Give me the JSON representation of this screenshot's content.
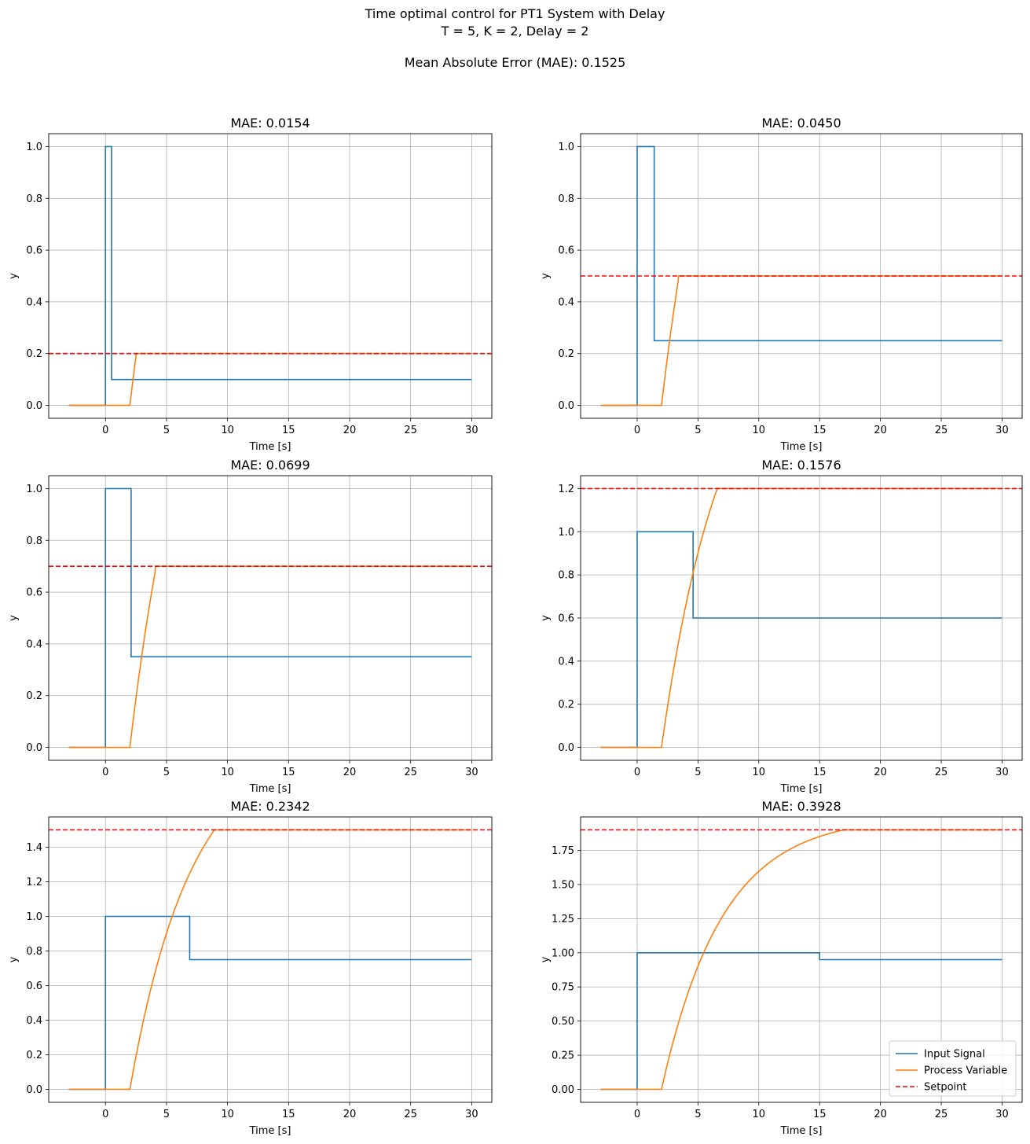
{
  "figure": {
    "title_line1": "Time optimal control for PT1 System with Delay",
    "title_line2": "T = 5, K = 2, Delay = 2",
    "title_line3": "Mean Absolute Error (MAE): 0.1525"
  },
  "legend": {
    "entries": [
      {
        "label": "Input Signal",
        "color": "#1f77b4",
        "style": "solid"
      },
      {
        "label": "Process Variable",
        "color": "#ff7f0e",
        "style": "solid"
      },
      {
        "label": "Setpoint",
        "color": "#ff0000",
        "style": "dashed"
      }
    ],
    "placement": "lower-right of last subplot"
  },
  "chart_data": [
    {
      "type": "line",
      "title": "MAE: 0.0154",
      "xlabel": "Time [s]",
      "ylabel": "y",
      "xlim": [
        -4.65,
        31.65
      ],
      "ylim": [
        -0.05,
        1.05
      ],
      "xticks": [
        "0",
        "5",
        "10",
        "15",
        "20",
        "25",
        "30"
      ],
      "yticks": [
        "0.0",
        "0.2",
        "0.4",
        "0.6",
        "0.8",
        "1.0"
      ],
      "grid": true,
      "setpoint": 0.2,
      "input_switch_time": 0.5,
      "input_final": 0.1,
      "pv_final": 0.2
    },
    {
      "type": "line",
      "title": "MAE: 0.0450",
      "xlabel": "Time [s]",
      "ylabel": "y",
      "xlim": [
        -4.65,
        31.65
      ],
      "ylim": [
        -0.05,
        1.05
      ],
      "xticks": [
        "0",
        "5",
        "10",
        "15",
        "20",
        "25",
        "30"
      ],
      "yticks": [
        "0.0",
        "0.2",
        "0.4",
        "0.6",
        "0.8",
        "1.0"
      ],
      "grid": true,
      "setpoint": 0.5,
      "input_switch_time": 1.4,
      "input_final": 0.25,
      "pv_final": 0.5
    },
    {
      "type": "line",
      "title": "MAE: 0.0699",
      "xlabel": "Time [s]",
      "ylabel": "y",
      "xlim": [
        -4.65,
        31.65
      ],
      "ylim": [
        -0.05,
        1.05
      ],
      "xticks": [
        "0",
        "5",
        "10",
        "15",
        "20",
        "25",
        "30"
      ],
      "yticks": [
        "0.0",
        "0.2",
        "0.4",
        "0.6",
        "0.8",
        "1.0"
      ],
      "grid": true,
      "setpoint": 0.7,
      "input_switch_time": 2.1,
      "input_final": 0.35,
      "pv_final": 0.7
    },
    {
      "type": "line",
      "title": "MAE: 0.1576",
      "xlabel": "Time [s]",
      "ylabel": "y",
      "xlim": [
        -4.65,
        31.65
      ],
      "ylim": [
        -0.06,
        1.26
      ],
      "xticks": [
        "0",
        "5",
        "10",
        "15",
        "20",
        "25",
        "30"
      ],
      "yticks": [
        "0.0",
        "0.2",
        "0.4",
        "0.6",
        "0.8",
        "1.0",
        "1.2"
      ],
      "grid": true,
      "setpoint": 1.2,
      "input_switch_time": 4.6,
      "input_final": 0.6,
      "pv_final": 1.2
    },
    {
      "type": "line",
      "title": "MAE: 0.2342",
      "xlabel": "Time [s]",
      "ylabel": "y",
      "xlim": [
        -4.65,
        31.65
      ],
      "ylim": [
        -0.075,
        1.575
      ],
      "xticks": [
        "0",
        "5",
        "10",
        "15",
        "20",
        "25",
        "30"
      ],
      "yticks": [
        "0.0",
        "0.2",
        "0.4",
        "0.6",
        "0.8",
        "1.0",
        "1.2",
        "1.4"
      ],
      "grid": true,
      "setpoint": 1.5,
      "input_switch_time": 6.9,
      "input_final": 0.75,
      "pv_final": 1.5
    },
    {
      "type": "line",
      "title": "MAE: 0.3928",
      "xlabel": "Time [s]",
      "ylabel": "y",
      "xlim": [
        -4.65,
        31.65
      ],
      "ylim": [
        -0.095,
        1.995
      ],
      "xticks": [
        "0",
        "5",
        "10",
        "15",
        "20",
        "25",
        "30"
      ],
      "yticks": [
        "0.00",
        "0.25",
        "0.50",
        "0.75",
        "1.00",
        "1.25",
        "1.50",
        "1.75"
      ],
      "grid": true,
      "setpoint": 1.9,
      "input_switch_time": 15.0,
      "input_final": 0.95,
      "pv_final": 1.9,
      "has_legend": true
    }
  ]
}
